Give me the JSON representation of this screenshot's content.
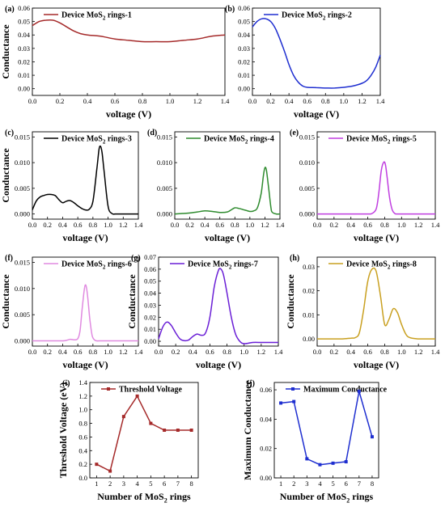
{
  "chart_data": [
    {
      "id": "a",
      "panel": "(a)",
      "type": "line",
      "color": "#a52a2a",
      "legend": "Device MoS₂ rings-1",
      "xlabel": "voltage (V)",
      "ylabel": "Conductance",
      "xlim": [
        0,
        1.4
      ],
      "ylim": [
        -0.005,
        0.06
      ],
      "xticks": [
        "0.0",
        "0.2",
        "0.4",
        "0.6",
        "0.8",
        "1.0",
        "1.2",
        "1.4"
      ],
      "yticks": [
        "0.00",
        "0.01",
        "0.02",
        "0.03",
        "0.04",
        "0.05",
        "0.06"
      ],
      "x": [
        0,
        0.05,
        0.1,
        0.15,
        0.2,
        0.25,
        0.3,
        0.35,
        0.4,
        0.5,
        0.6,
        0.7,
        0.8,
        0.9,
        1.0,
        1.1,
        1.2,
        1.3,
        1.4
      ],
      "y": [
        0.047,
        0.05,
        0.051,
        0.051,
        0.049,
        0.046,
        0.043,
        0.041,
        0.04,
        0.039,
        0.037,
        0.036,
        0.035,
        0.035,
        0.035,
        0.036,
        0.037,
        0.039,
        0.04
      ]
    },
    {
      "id": "b",
      "panel": "(b)",
      "type": "line",
      "color": "#1f2fd0",
      "legend": "Device MoS₂ rings-2",
      "xlabel": "voltage (V)",
      "ylabel": "",
      "xlim": [
        0,
        1.4
      ],
      "ylim": [
        -0.005,
        0.06
      ],
      "xticks": [
        "0.0",
        "0.2",
        "0.4",
        "0.6",
        "0.8",
        "1.0",
        "1.2",
        "1.4"
      ],
      "yticks": [
        "0.00",
        "0.01",
        "0.02",
        "0.03",
        "0.04",
        "0.05",
        "0.06"
      ],
      "x": [
        0,
        0.05,
        0.1,
        0.15,
        0.2,
        0.25,
        0.3,
        0.35,
        0.4,
        0.45,
        0.5,
        0.55,
        0.6,
        0.7,
        0.8,
        0.9,
        1.0,
        1.1,
        1.2,
        1.25,
        1.3,
        1.35,
        1.4
      ],
      "y": [
        0.046,
        0.05,
        0.052,
        0.052,
        0.05,
        0.045,
        0.037,
        0.028,
        0.018,
        0.01,
        0.005,
        0.002,
        0.001,
        0.0008,
        0.0005,
        0.0005,
        0.001,
        0.002,
        0.004,
        0.006,
        0.01,
        0.016,
        0.025
      ]
    },
    {
      "id": "c",
      "panel": "(c)",
      "type": "line",
      "color": "#000000",
      "legend": "Device MoS₂ rings-3",
      "xlabel": "voltage (V)",
      "ylabel": "Conductance",
      "xlim": [
        0,
        1.4
      ],
      "ylim": [
        -0.001,
        0.016
      ],
      "xticks": [
        "0.0",
        "0.2",
        "0.4",
        "0.6",
        "0.8",
        "1.0",
        "1.2",
        "1.4"
      ],
      "yticks": [
        "0.000",
        "0.005",
        "0.010",
        "0.015"
      ],
      "x": [
        0,
        0.05,
        0.1,
        0.15,
        0.2,
        0.25,
        0.3,
        0.35,
        0.4,
        0.45,
        0.5,
        0.55,
        0.6,
        0.65,
        0.7,
        0.75,
        0.8,
        0.85,
        0.88,
        0.9,
        0.92,
        0.95,
        1.0,
        1.05,
        1.1,
        1.2,
        1.3,
        1.4
      ],
      "y": [
        0.0008,
        0.0025,
        0.0033,
        0.0036,
        0.0038,
        0.0038,
        0.0036,
        0.0028,
        0.0022,
        0.0025,
        0.0026,
        0.0022,
        0.0016,
        0.0011,
        0.0008,
        0.0009,
        0.0025,
        0.0085,
        0.0125,
        0.0132,
        0.012,
        0.008,
        0.0015,
        0.0001,
        0,
        0,
        0,
        0
      ]
    },
    {
      "id": "d",
      "panel": "(d)",
      "type": "line",
      "color": "#2e8b2e",
      "legend": "Device MoS₂ rings-4",
      "xlabel": "voltage (V)",
      "ylabel": "",
      "xlim": [
        0,
        1.4
      ],
      "ylim": [
        -0.001,
        0.016
      ],
      "xticks": [
        "0.0",
        "0.2",
        "0.4",
        "0.6",
        "0.8",
        "1.0",
        "1.2",
        "1.4"
      ],
      "yticks": [
        "0.000",
        "0.005",
        "0.010",
        "0.015"
      ],
      "x": [
        0,
        0.1,
        0.2,
        0.3,
        0.4,
        0.5,
        0.6,
        0.7,
        0.75,
        0.8,
        0.85,
        0.9,
        0.95,
        1.0,
        1.05,
        1.1,
        1.15,
        1.18,
        1.2,
        1.22,
        1.25,
        1.28,
        1.3,
        1.35,
        1.4
      ],
      "y": [
        0,
        0.0001,
        0.0002,
        0.0004,
        0.0006,
        0.0005,
        0.0003,
        0.0004,
        0.0008,
        0.0012,
        0.0011,
        0.0009,
        0.0007,
        0.0005,
        0.0006,
        0.0012,
        0.004,
        0.0075,
        0.009,
        0.0085,
        0.005,
        0.0012,
        0.0003,
        0,
        0
      ]
    },
    {
      "id": "e",
      "panel": "(e)",
      "type": "line",
      "color": "#c03fe0",
      "legend": "Device MoS₂ rings-5",
      "xlabel": "voltage (V)",
      "ylabel": "",
      "xlim": [
        0,
        1.4
      ],
      "ylim": [
        -0.001,
        0.016
      ],
      "xticks": [
        "0.0",
        "0.2",
        "0.4",
        "0.6",
        "0.8",
        "1.0",
        "1.2",
        "1.4"
      ],
      "yticks": [
        "0.000",
        "0.005",
        "0.010",
        "0.015"
      ],
      "x": [
        0,
        0.2,
        0.4,
        0.6,
        0.65,
        0.7,
        0.73,
        0.76,
        0.79,
        0.81,
        0.83,
        0.86,
        0.89,
        0.92,
        0.95,
        1.0,
        1.2,
        1.4
      ],
      "y": [
        0,
        0,
        0,
        0,
        0.0001,
        0.001,
        0.004,
        0.0085,
        0.0101,
        0.0095,
        0.007,
        0.003,
        0.0008,
        0.0001,
        0,
        0,
        0,
        0
      ]
    },
    {
      "id": "f",
      "panel": "(f)",
      "type": "line",
      "color": "#e08ae0",
      "legend": "Device MoS₂ rings-6",
      "xlabel": "voltage (V)",
      "ylabel": "Conductance",
      "xlim": [
        0,
        1.4
      ],
      "ylim": [
        -0.001,
        0.016
      ],
      "xticks": [
        "0.0",
        "0.2",
        "0.4",
        "0.6",
        "0.8",
        "1.0",
        "1.2",
        "1.4"
      ],
      "yticks": [
        "0.000",
        "0.005",
        "0.010",
        "0.015"
      ],
      "x": [
        0,
        0.2,
        0.4,
        0.45,
        0.5,
        0.55,
        0.6,
        0.63,
        0.66,
        0.69,
        0.71,
        0.73,
        0.76,
        0.79,
        0.82,
        0.85,
        0.9,
        1.0,
        1.2,
        1.4
      ],
      "y": [
        0,
        0,
        0,
        0.0001,
        0.0003,
        0.0002,
        0.0004,
        0.002,
        0.0065,
        0.0102,
        0.0105,
        0.0085,
        0.004,
        0.001,
        0.0002,
        0,
        0,
        0,
        0,
        0
      ]
    },
    {
      "id": "g",
      "panel": "(g)",
      "type": "line",
      "color": "#6a1fd6",
      "legend": "Device MoS₂ rings-7",
      "xlabel": "voltage (V)",
      "ylabel": "Conductance",
      "xlim": [
        0,
        1.4
      ],
      "ylim": [
        -0.004,
        0.07
      ],
      "xticks": [
        "0.0",
        "0.2",
        "0.4",
        "0.6",
        "0.8",
        "1.0",
        "1.2",
        "1.4"
      ],
      "yticks": [
        "0.00",
        "0.01",
        "0.02",
        "0.03",
        "0.04",
        "0.05",
        "0.06",
        "0.07"
      ],
      "x": [
        0,
        0.05,
        0.1,
        0.15,
        0.2,
        0.25,
        0.3,
        0.35,
        0.4,
        0.45,
        0.5,
        0.55,
        0.6,
        0.65,
        0.7,
        0.73,
        0.76,
        0.8,
        0.85,
        0.9,
        0.95,
        1.0,
        1.1,
        1.2,
        1.3,
        1.4
      ],
      "y": [
        0.002,
        0.012,
        0.016,
        0.013,
        0.007,
        0.002,
        0.0005,
        0.001,
        0.004,
        0.006,
        0.005,
        0.007,
        0.02,
        0.045,
        0.059,
        0.06,
        0.055,
        0.04,
        0.02,
        0.006,
        0,
        -0.002,
        -0.001,
        -0.001,
        -0.001,
        -0.001
      ]
    },
    {
      "id": "h",
      "panel": "(h)",
      "type": "line",
      "color": "#c9a020",
      "legend": "Device MoS₂ rings-8",
      "xlabel": "voltage (V)",
      "ylabel": "Conductance",
      "xlim": [
        0,
        1.4
      ],
      "ylim": [
        -0.003,
        0.034
      ],
      "xticks": [
        "0.0",
        "0.2",
        "0.4",
        "0.6",
        "0.8",
        "1.0",
        "1.2",
        "1.4"
      ],
      "yticks": [
        "0.00",
        "0.01",
        "0.02",
        "0.03"
      ],
      "x": [
        0,
        0.1,
        0.2,
        0.3,
        0.4,
        0.45,
        0.5,
        0.55,
        0.6,
        0.65,
        0.7,
        0.75,
        0.8,
        0.85,
        0.9,
        0.95,
        1.0,
        1.05,
        1.1,
        1.2,
        1.3,
        1.4
      ],
      "y": [
        0,
        0,
        0,
        0,
        0.0003,
        0.0005,
        0.0025,
        0.012,
        0.024,
        0.029,
        0.028,
        0.018,
        0.006,
        0.008,
        0.0125,
        0.011,
        0.006,
        0.002,
        0.0005,
        0,
        0,
        0
      ]
    },
    {
      "id": "i",
      "panel": "(i)",
      "type": "line",
      "color": "#a52a2a",
      "markers": true,
      "legend": "Threshold Voltage",
      "xlabel": "Number of MoS₂ rings",
      "ylabel": "Threshold Voltage (eV)",
      "xlim": [
        0.5,
        8.5
      ],
      "ylim": [
        0,
        1.4
      ],
      "xticks": [
        "1",
        "2",
        "3",
        "4",
        "5",
        "6",
        "7",
        "8"
      ],
      "yticks": [
        "0.0",
        "0.2",
        "0.4",
        "0.6",
        "0.8",
        "1.0",
        "1.2",
        "1.4"
      ],
      "x": [
        1,
        2,
        3,
        4,
        5,
        6,
        7,
        8
      ],
      "y": [
        0.2,
        0.1,
        0.9,
        1.2,
        0.8,
        0.7,
        0.7,
        0.7
      ]
    },
    {
      "id": "j",
      "panel": "(j)",
      "type": "line",
      "color": "#1f2fd0",
      "markers": true,
      "legend": "Maximum Conductance",
      "xlabel": "Number of MoS₂ rings",
      "ylabel": "Maximum Conductance",
      "xlim": [
        0.5,
        8.5
      ],
      "ylim": [
        0,
        0.065
      ],
      "xticks": [
        "1",
        "2",
        "3",
        "4",
        "5",
        "6",
        "7",
        "8"
      ],
      "yticks": [
        "0.00",
        "0.02",
        "0.04",
        "0.06"
      ],
      "x": [
        1,
        2,
        3,
        4,
        5,
        6,
        7,
        8
      ],
      "y": [
        0.051,
        0.052,
        0.013,
        0.009,
        0.01,
        0.011,
        0.059,
        0.028
      ]
    }
  ]
}
